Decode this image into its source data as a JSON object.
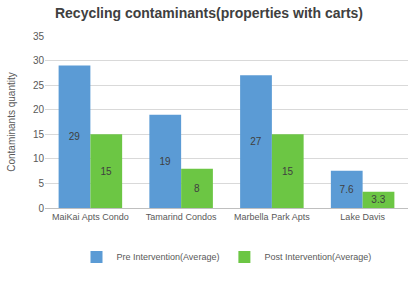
{
  "chart_data": {
    "type": "bar",
    "title": "Recycling contaminants(properties with carts)",
    "y_label": "Contaminants quantity",
    "categories": [
      "MaiKai Apts Condo",
      "Tamarind Condos",
      "Marbella Park Apts",
      "Lake Davis"
    ],
    "series": [
      {
        "name": "Pre Intervention(Average)",
        "color": "#5b9bd5",
        "values": [
          29,
          19,
          27,
          7.6
        ]
      },
      {
        "name": "Post Intervention(Average)",
        "color": "#6cc644",
        "values": [
          15,
          8,
          15,
          3.3
        ]
      }
    ],
    "ylim": [
      0,
      35
    ],
    "yticks": [
      0,
      5,
      10,
      15,
      20,
      25,
      30,
      35
    ],
    "grid": true,
    "legend": "bottom",
    "data_labels": true
  }
}
